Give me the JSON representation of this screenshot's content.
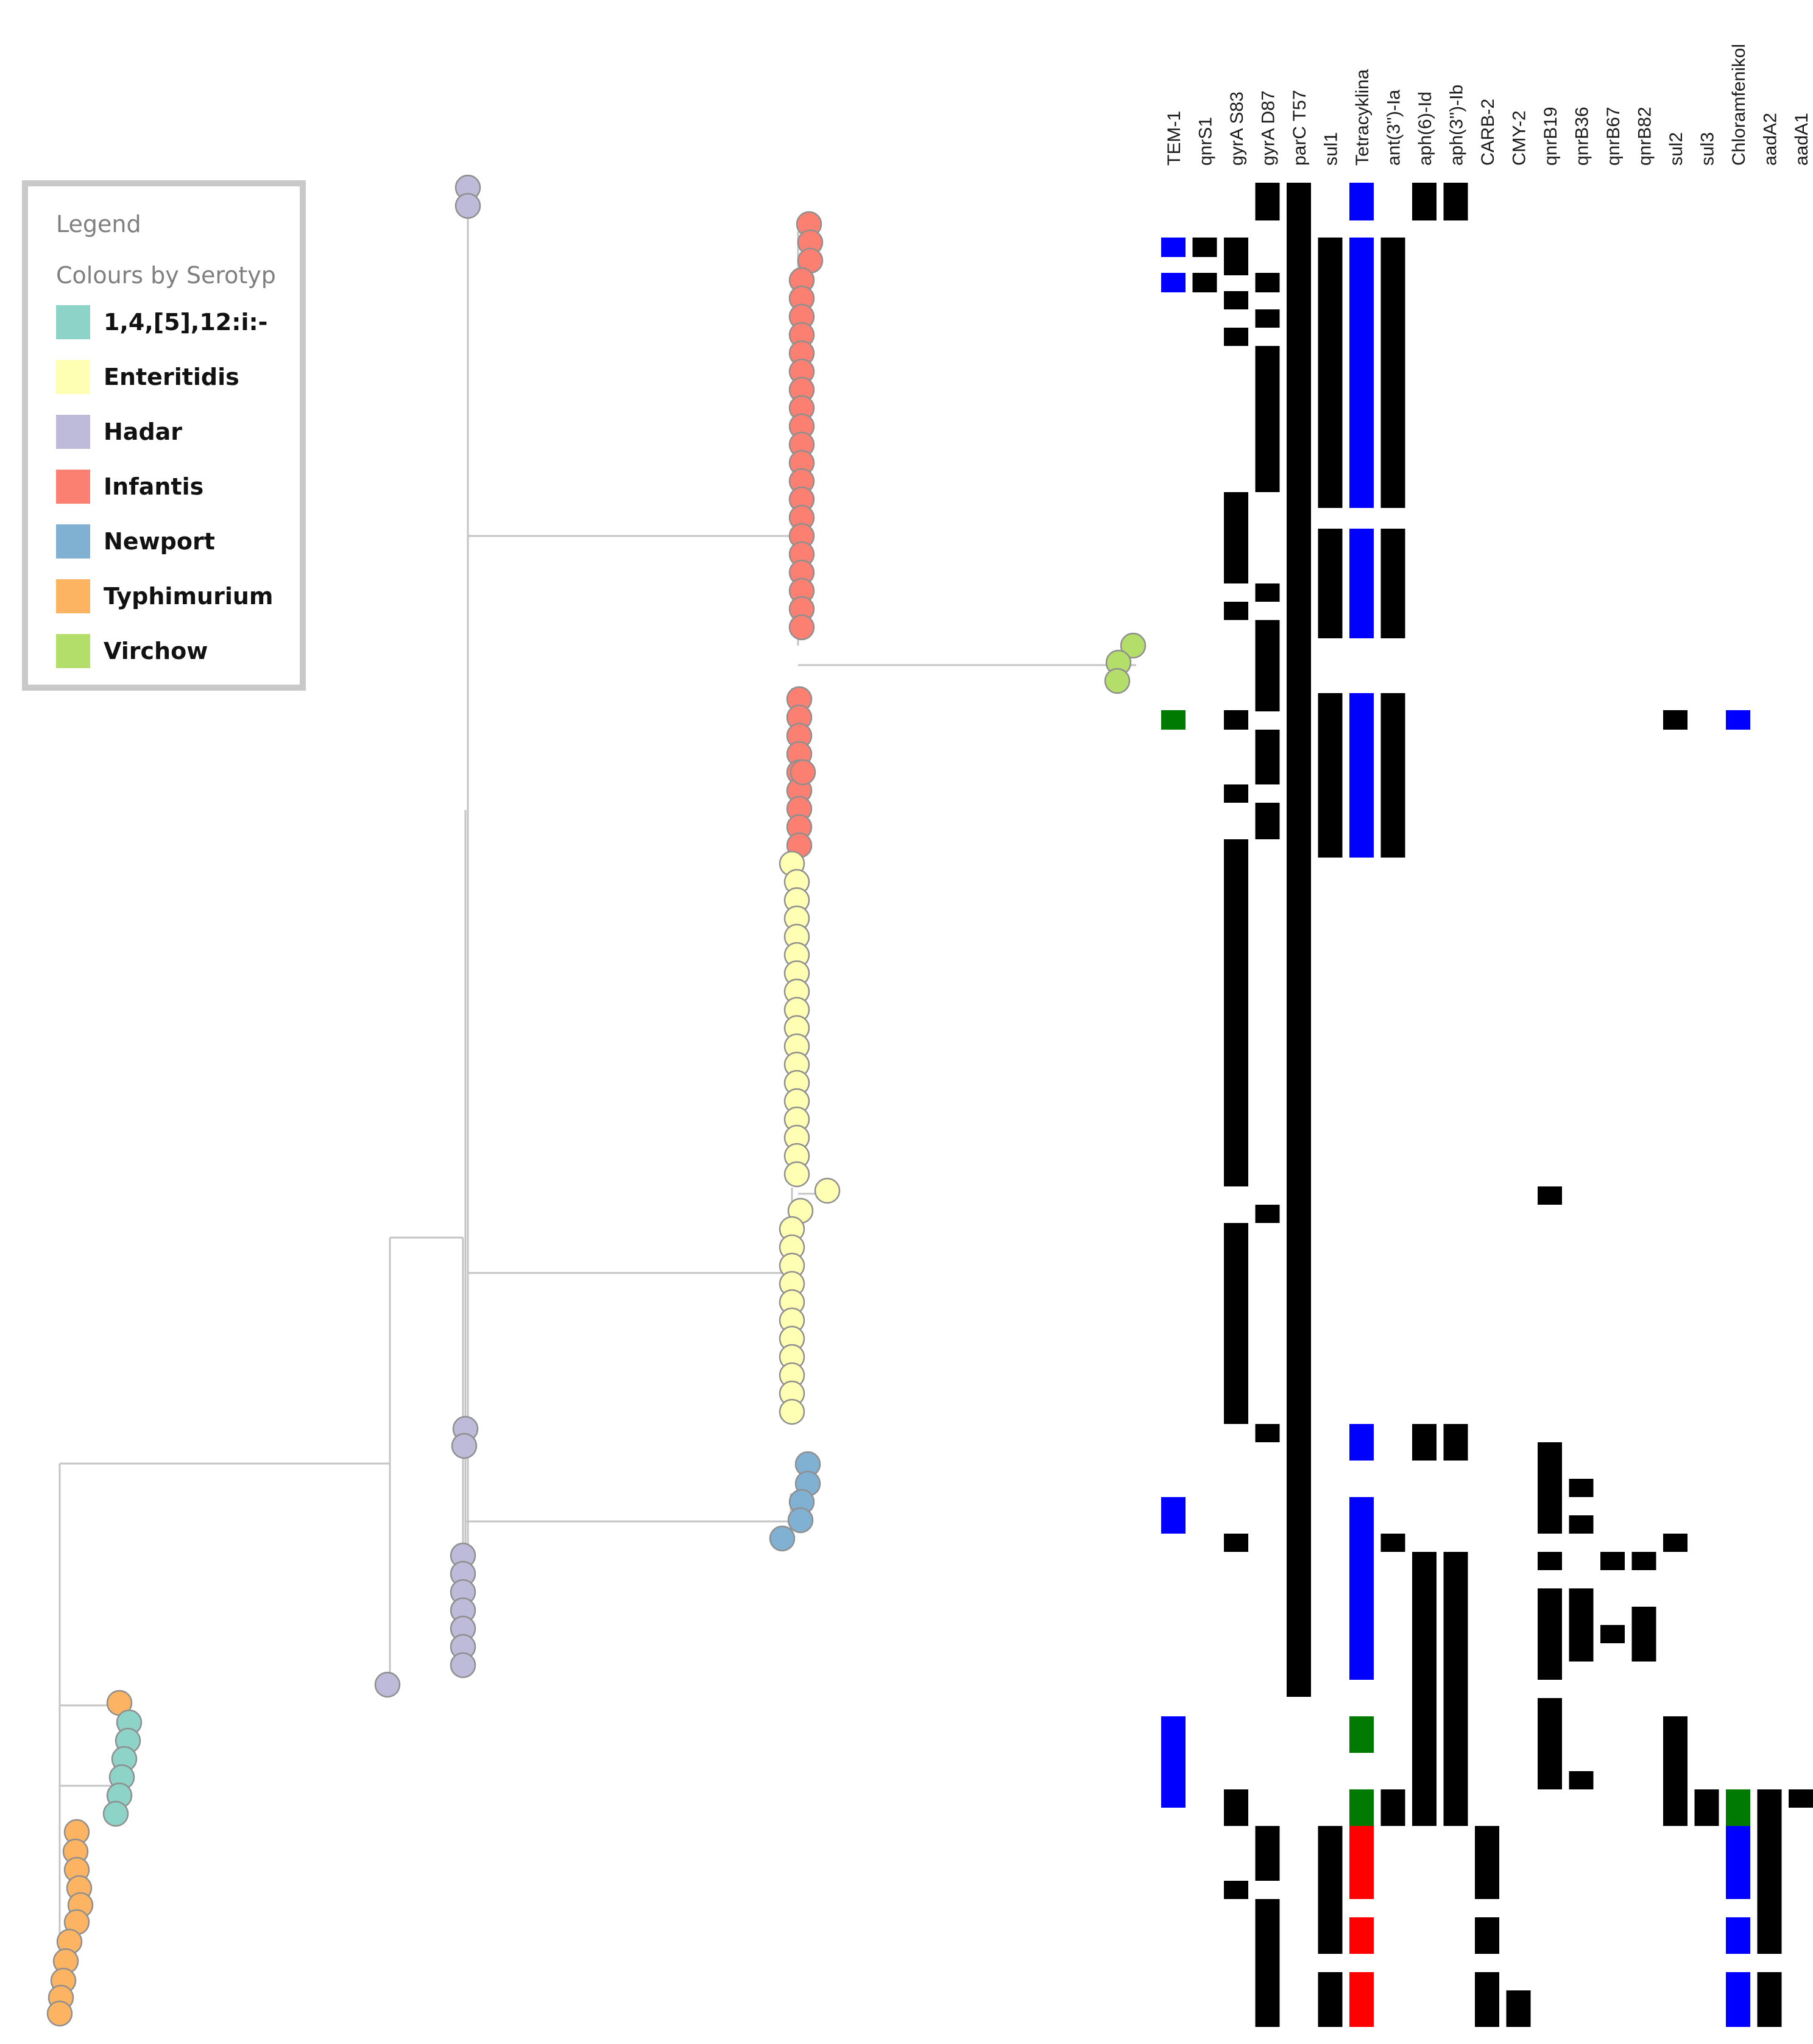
{
  "legend": {
    "title": "Legend",
    "subtitle": "Colours by Serotyp",
    "items": [
      {
        "label": "1,4,[5],12:i:-",
        "color": "#8dd3c7"
      },
      {
        "label": "Enteritidis",
        "color": "#ffffb3"
      },
      {
        "label": "Hadar",
        "color": "#bebada"
      },
      {
        "label": "Infantis",
        "color": "#fb8072"
      },
      {
        "label": "Newport",
        "color": "#80b1d3"
      },
      {
        "label": "Typhimurium",
        "color": "#fdb462"
      },
      {
        "label": "Virchow",
        "color": "#b3de69"
      }
    ]
  },
  "heatmap": {
    "columns": [
      "TEM-1",
      "qnrS1",
      "gyrA S83",
      "gyrA D87",
      "parC T57",
      "sul1",
      "Tetracyklina",
      "ant(3'')-Ia",
      "aph(6)-Id",
      "aph(3'')-Ib",
      "CARB-2",
      "CMY-2",
      "qnrB19",
      "qnrB36",
      "qnrB67",
      "qnrB82",
      "sul2",
      "sul3",
      "Chloramfenikol",
      "aadA2",
      "aadA1"
    ],
    "palette": {
      "k": "#000000",
      "b": "#0000ff",
      "g": "#007a00",
      "r": "#ff0000"
    }
  }
}
